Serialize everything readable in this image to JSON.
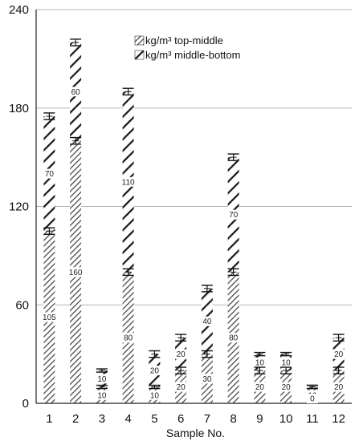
{
  "chart_data": {
    "type": "bar",
    "stacked": true,
    "xlabel": "Sample No.",
    "ylabel": "",
    "ylim": [
      0,
      240
    ],
    "yticks": [
      0,
      60,
      120,
      180,
      240
    ],
    "grid": true,
    "legend_position": "top-center",
    "categories": [
      "1",
      "2",
      "3",
      "4",
      "5",
      "6",
      "7",
      "8",
      "9",
      "10",
      "11",
      "12"
    ],
    "series": [
      {
        "name": "kg/m³ top-middle",
        "pattern": "dense-diagonal-hatch",
        "values": [
          105,
          160,
          10,
          80,
          10,
          20,
          30,
          80,
          20,
          20,
          10,
          20
        ],
        "labels": [
          "105",
          "160",
          "10",
          "80",
          "10",
          "20",
          "30",
          "80",
          "20",
          "20",
          "10",
          "20"
        ],
        "errors": [
          2,
          2,
          1,
          2,
          1,
          2,
          2,
          2,
          2,
          2,
          1,
          2
        ]
      },
      {
        "name": "kg/m³ middle-bottom",
        "pattern": "wide-diagonal-hatch",
        "values": [
          70,
          60,
          10,
          110,
          20,
          20,
          40,
          70,
          10,
          10,
          0,
          20
        ],
        "labels": [
          "70",
          "60",
          "10",
          "110",
          "20",
          "20",
          "40",
          "70",
          "10",
          "10",
          "0",
          "20"
        ],
        "errors": [
          2,
          2,
          1,
          2,
          2,
          2,
          2,
          2,
          1,
          1,
          1,
          2
        ]
      }
    ]
  }
}
